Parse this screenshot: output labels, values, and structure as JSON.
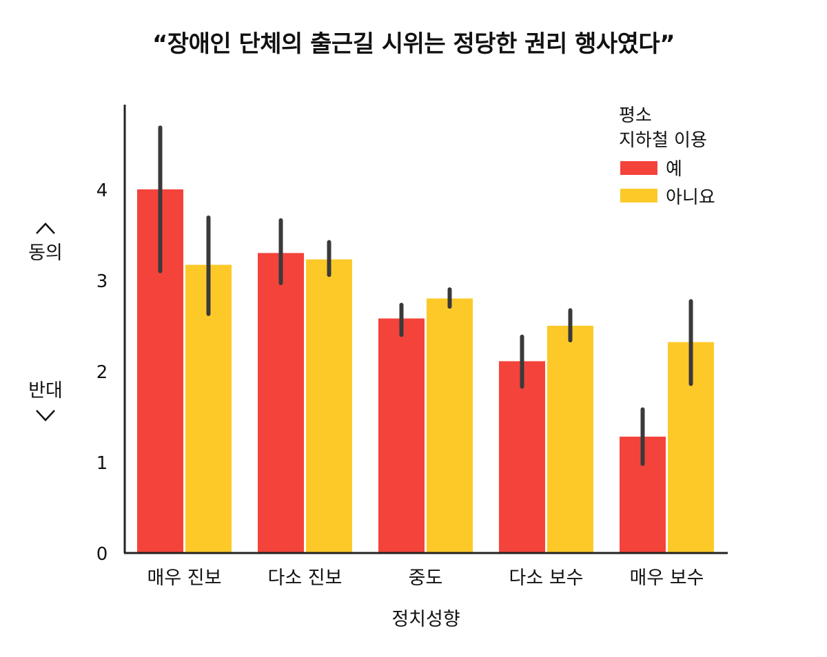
{
  "chart_data": {
    "type": "bar",
    "title": "“장애인 단체의 출근길 시위는 정당한 권리 행사였다”",
    "xlabel": "정치성향",
    "ylabel_top": "동의",
    "ylabel_bottom": "반대",
    "categories": [
      "매우 진보",
      "다소 진보",
      "중도",
      "다소 보수",
      "매우 보수"
    ],
    "ylim": [
      0,
      4.9
    ],
    "yticks": [
      0,
      1,
      2,
      3,
      4
    ],
    "legend": {
      "title_line1": "평소",
      "title_line2": "지하철 이용",
      "position": "top-right"
    },
    "series": [
      {
        "name": "예",
        "color": "#f4433b",
        "values": [
          4.0,
          3.3,
          2.58,
          2.11,
          1.28
        ],
        "err_low": [
          3.1,
          2.97,
          2.4,
          1.83,
          0.98
        ],
        "err_high": [
          4.68,
          3.66,
          2.73,
          2.38,
          1.58
        ]
      },
      {
        "name": "아니요",
        "color": "#fdc928",
        "values": [
          3.17,
          3.23,
          2.8,
          2.5,
          2.32
        ],
        "err_low": [
          2.63,
          3.06,
          2.71,
          2.34,
          1.86
        ],
        "err_high": [
          3.69,
          3.42,
          2.9,
          2.67,
          2.77
        ]
      }
    ],
    "errorbar_color": "#3a3a3a"
  }
}
